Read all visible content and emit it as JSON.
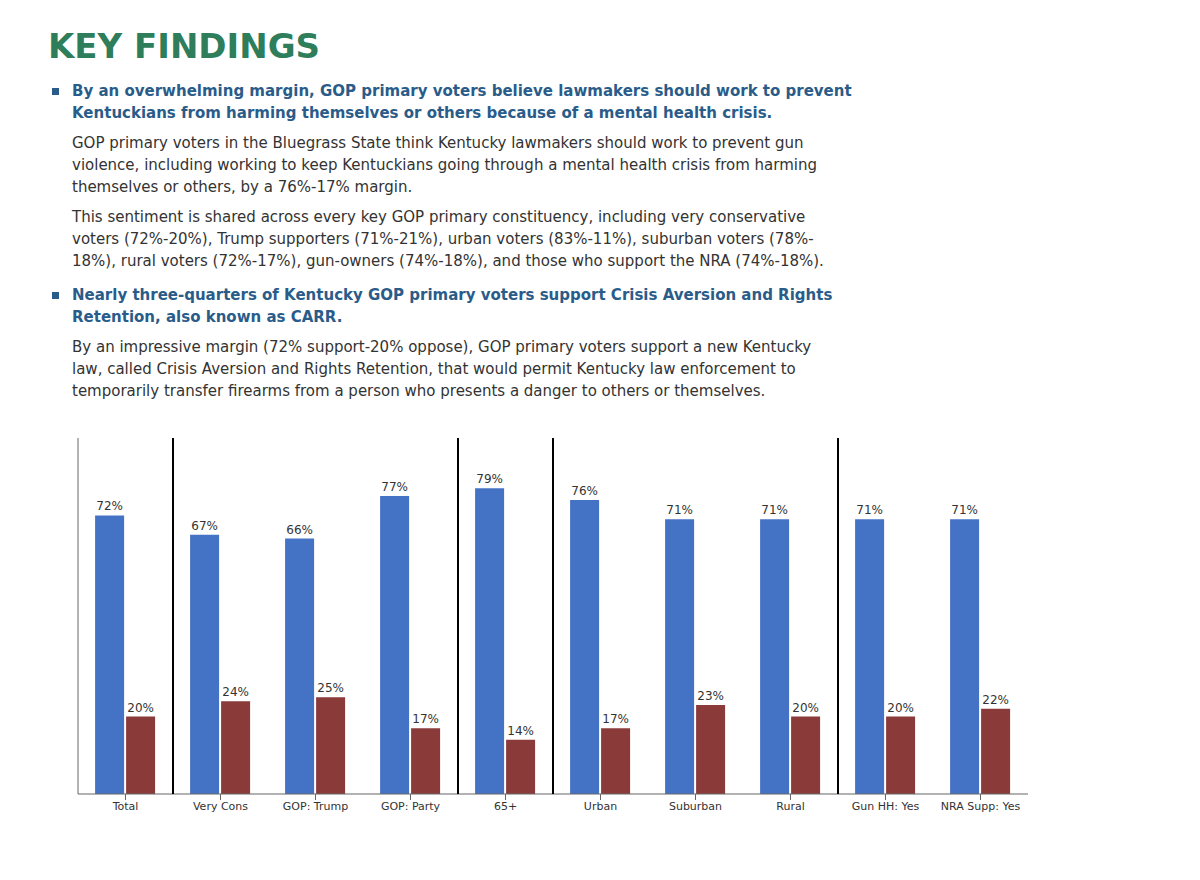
{
  "chart_data": {
    "type": "bar",
    "title": "KEY FINDINGS",
    "annotations": [
      [
        [
          "By an overwhelming margin, GOP primary voters believe lawmakers should work to prevent",
          "Kentuckians from harming themselves or others because of a mental health crisis."
        ],
        [
          "GOP primary voters in the Bluegrass State think Kentucky lawmakers should work to prevent gun",
          "violence, including working to keep Kentuckians going through a mental health crisis from harming",
          "themselves or others, by a 76%-17% margin."
        ],
        [
          "This sentiment is shared across every key GOP primary constituency, including very conservative",
          "voters (72%-20%), Trump supporters (71%-21%), urban voters (83%-11%), suburban voters (78%-",
          "18%), rural voters (72%-17%), gun-owners (74%-18%), and those who support the NRA (74%-18%)."
        ]
      ],
      [
        [
          "Nearly three-quarters of Kentucky GOP primary voters support Crisis Aversion and Rights",
          "Retention, also known as CARR."
        ],
        [
          "By an impressive margin (72% support-20% oppose), GOP primary voters support a new Kentucky",
          "law, called Crisis Aversion and Rights Retention, that would permit Kentucky law enforcement to",
          "temporarily transfer firearms from a person who presents a danger to others or themselves."
        ]
      ]
    ],
    "categories": [
      "Total",
      "Very Cons",
      "GOP: Trump",
      "GOP: Party",
      "65+",
      "Urban",
      "Suburban",
      "Rural",
      "Gun HH: Yes",
      "NRA Supp: Yes"
    ],
    "series": [
      {
        "color": "#4472C4",
        "values": [
          72,
          67,
          66,
          77,
          79,
          76,
          71,
          71,
          71,
          71
        ],
        "value_labels": [
          "72%",
          "67%",
          "66%",
          "77%",
          "79%",
          "76%",
          "71%",
          "71%",
          "71%",
          "71%"
        ]
      },
      {
        "color": "#8B3A3A",
        "values": [
          20,
          24,
          25,
          17,
          14,
          17,
          23,
          20,
          20,
          22
        ],
        "value_labels": [
          "20%",
          "24%",
          "25%",
          "17%",
          "14%",
          "17%",
          "23%",
          "20%",
          "20%",
          "22%"
        ]
      }
    ],
    "ylim": [
      0,
      92
    ],
    "grid": false,
    "data_labels": true,
    "tick_labels": "x"
  }
}
